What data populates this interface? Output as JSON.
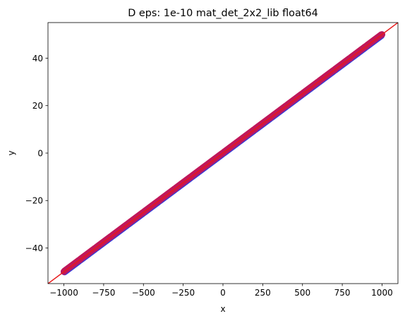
{
  "chart_data": {
    "type": "scatter",
    "title": "D eps: 1e-10 mat_det_2x2_lib float64",
    "xlabel": "x",
    "ylabel": "y",
    "xlim": [
      -1100,
      1100
    ],
    "ylim": [
      -55,
      55
    ],
    "xticks": [
      -1000,
      -750,
      -500,
      -250,
      0,
      250,
      500,
      750,
      1000
    ],
    "xtick_labels": [
      "−1000",
      "−750",
      "−500",
      "−250",
      "0",
      "250",
      "500",
      "750",
      "1000"
    ],
    "yticks": [
      -40,
      -20,
      0,
      20,
      40
    ],
    "ytick_labels": [
      "−40",
      "−20",
      "0",
      "20",
      "40"
    ],
    "grid": false,
    "scatter_series": [
      {
        "points": [
          [
            -1000,
            -50
          ],
          [
            -900,
            -45
          ],
          [
            -800,
            -40
          ],
          [
            -700,
            -35
          ],
          [
            -600,
            -30
          ],
          [
            -500,
            -25
          ],
          [
            -400,
            -20
          ],
          [
            -300,
            -15
          ],
          [
            -200,
            -10
          ],
          [
            -100,
            -5
          ],
          [
            0,
            0
          ],
          [
            100,
            5
          ],
          [
            200,
            10
          ],
          [
            300,
            15
          ],
          [
            400,
            20
          ],
          [
            500,
            25
          ],
          [
            600,
            30
          ],
          [
            700,
            35
          ],
          [
            800,
            40
          ],
          [
            900,
            45
          ],
          [
            1000,
            50
          ]
        ],
        "color": "#3b3bd6",
        "edge_color": "#3b3bd6"
      },
      {
        "points": [
          [
            -1000,
            -50
          ],
          [
            -900,
            -45
          ],
          [
            -800,
            -40
          ],
          [
            -700,
            -35
          ],
          [
            -600,
            -30
          ],
          [
            -500,
            -25
          ],
          [
            -400,
            -20
          ],
          [
            -300,
            -15
          ],
          [
            -200,
            -10
          ],
          [
            -100,
            -5
          ],
          [
            0,
            0
          ],
          [
            100,
            5
          ],
          [
            200,
            10
          ],
          [
            300,
            15
          ],
          [
            400,
            20
          ],
          [
            500,
            25
          ],
          [
            600,
            30
          ],
          [
            700,
            35
          ],
          [
            800,
            40
          ],
          [
            900,
            45
          ],
          [
            1000,
            50
          ]
        ],
        "color": "#c0185a",
        "edge_color": "#c0185a"
      }
    ],
    "reference_line": {
      "x": [
        -1100,
        1100
      ],
      "y": [
        -55,
        55
      ],
      "color": "#e8191a"
    }
  }
}
